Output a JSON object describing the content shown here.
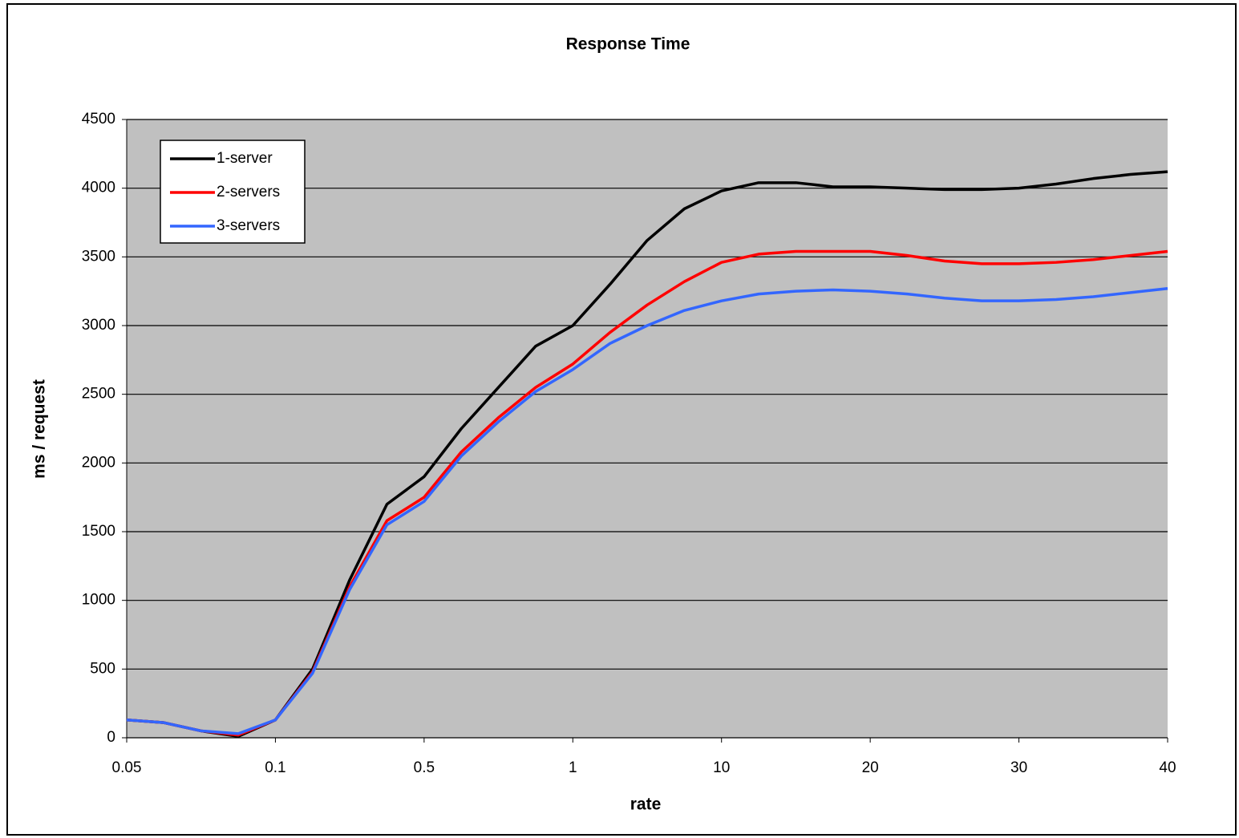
{
  "chart_data": {
    "type": "line",
    "title": "Response Time",
    "x_label": "rate",
    "y_label": "ms / request",
    "categories": [
      "0.05",
      null,
      null,
      null,
      "0.1",
      null,
      null,
      null,
      "0.5",
      null,
      null,
      null,
      "1",
      null,
      null,
      null,
      "10",
      null,
      null,
      null,
      "20",
      null,
      null,
      null,
      "30",
      null,
      null,
      null,
      "40"
    ],
    "series": [
      {
        "name": "1-server",
        "color": "#000000",
        "values": [
          130,
          110,
          50,
          10,
          130,
          500,
          1150,
          1700,
          1900,
          2250,
          2550,
          2850,
          3000,
          3300,
          3620,
          3850,
          3980,
          4040,
          4040,
          4010,
          4010,
          4000,
          3990,
          3990,
          4000,
          4030,
          4070,
          4100,
          4120
        ]
      },
      {
        "name": "2-servers",
        "color": "#ff0000",
        "values": [
          130,
          110,
          50,
          20,
          130,
          480,
          1100,
          1580,
          1750,
          2080,
          2330,
          2550,
          2720,
          2950,
          3150,
          3320,
          3460,
          3520,
          3540,
          3540,
          3540,
          3510,
          3470,
          3450,
          3450,
          3460,
          3480,
          3510,
          3540
        ]
      },
      {
        "name": "3-servers",
        "color": "#3366ff",
        "values": [
          130,
          110,
          50,
          30,
          130,
          470,
          1080,
          1550,
          1720,
          2050,
          2300,
          2520,
          2680,
          2870,
          3000,
          3110,
          3180,
          3230,
          3250,
          3260,
          3250,
          3230,
          3200,
          3180,
          3180,
          3190,
          3210,
          3240,
          3270
        ]
      }
    ],
    "ylim": [
      0,
      4500
    ],
    "yticks": [
      0,
      500,
      1000,
      1500,
      2000,
      2500,
      3000,
      3500,
      4000,
      4500
    ],
    "grid": true,
    "legend": "top-left",
    "plot_background": "#c0c0c0"
  }
}
